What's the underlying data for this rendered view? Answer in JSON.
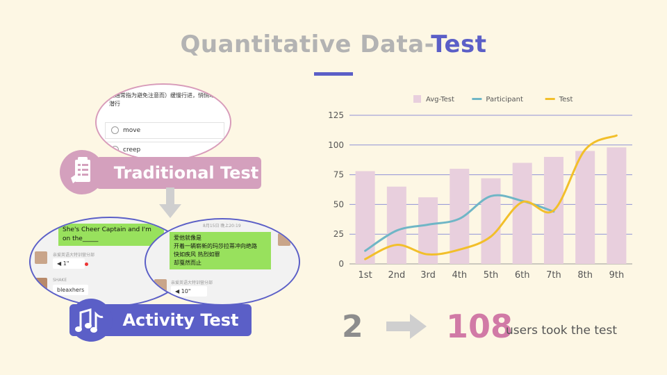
{
  "title": {
    "part1": "Quantitative Data-",
    "part2": "Test",
    "accent": "#5b5fc7",
    "muted": "#b3b3b3"
  },
  "traditional": {
    "label": "Traditional Test",
    "question": "（通常指为避免注意而）缓慢行进，悄悄动，潜行",
    "options": [
      "move",
      "creep"
    ],
    "color": "#d4a0bd"
  },
  "activity": {
    "label": "Activity Test",
    "color": "#5b5fc7",
    "left_chat": {
      "prompt": "She's Cheer Captain and I'm on the_____",
      "meta1": "亲爱英语大特训营分部",
      "voice1": "1\"",
      "name2": "SHAKE",
      "answer2": "bleaxhers"
    },
    "right_chat": {
      "time": "8月15日 晚上20:19",
      "message": "爱他就像是\n开着一辆崭新的玛莎拉蒂冲向绝路\n快如疾风 热烈如罪\n却戛然而止",
      "meta": "亲爱英语大特训营分部",
      "voice": "10\""
    }
  },
  "chart_data": {
    "type": "bar",
    "categories": [
      "1st",
      "2nd",
      "3rd",
      "4th",
      "5th",
      "6th",
      "7th",
      "8th",
      "9th"
    ],
    "series": [
      {
        "name": "Avg-Test",
        "kind": "bar",
        "color": "#e8cfdd",
        "values": [
          78,
          65,
          56,
          80,
          72,
          85,
          90,
          95,
          98
        ]
      },
      {
        "name": "Participant",
        "kind": "line",
        "color": "#6fb6c6",
        "values": [
          11,
          28,
          33,
          38,
          57,
          53,
          44,
          null,
          null
        ]
      },
      {
        "name": "Test",
        "kind": "line",
        "color": "#f2bf2a",
        "values": [
          4,
          16,
          8,
          12,
          23,
          52,
          45,
          96,
          108
        ]
      }
    ],
    "yticks": [
      0,
      25,
      50,
      75,
      100,
      125
    ],
    "ylim": [
      0,
      125
    ],
    "grid": true,
    "legend": "top"
  },
  "stats": {
    "from": "2",
    "to": "108",
    "caption": "users took the test"
  }
}
